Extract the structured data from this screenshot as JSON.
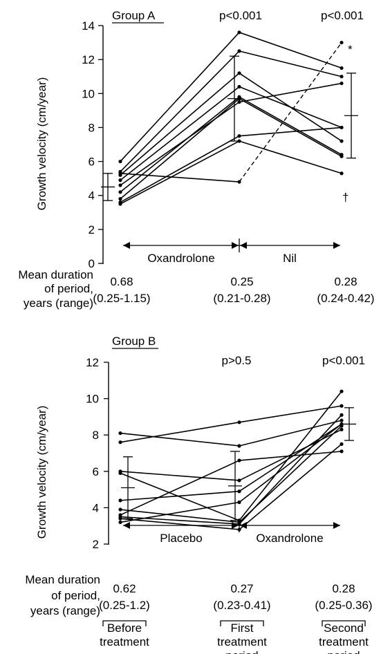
{
  "chart_data": [
    {
      "type": "line",
      "title": "Group A",
      "ylabel": "Growth velocity (cm/year)",
      "ylim": [
        0,
        14
      ],
      "yticks": [
        "0",
        "2",
        "4",
        "6",
        "8",
        "10",
        "12",
        "14"
      ],
      "period_labels": [
        "Oxandrolone",
        "Nil"
      ],
      "p_values": [
        "p<0.001",
        "p<0.001"
      ],
      "duration_label": [
        "Mean duration",
        "of period,",
        "years (range)"
      ],
      "durations": [
        {
          "mean": "0.68",
          "range": "(0.25-1.15)"
        },
        {
          "mean": "0.25",
          "range": "(0.21-0.28)"
        },
        {
          "mean": "0.28",
          "range": "(0.24-0.42)"
        }
      ],
      "series": [
        {
          "values": [
            6.0,
            13.6,
            11.5
          ]
        },
        {
          "values": [
            5.4,
            12.5,
            11.0
          ]
        },
        {
          "values": [
            5.2,
            11.2,
            7.2
          ]
        },
        {
          "values": [
            4.9,
            10.4,
            8.0
          ]
        },
        {
          "values": [
            4.6,
            9.5,
            10.6
          ]
        },
        {
          "values": [
            4.2,
            9.8,
            6.4
          ]
        },
        {
          "values": [
            3.8,
            9.7,
            6.3
          ]
        },
        {
          "values": [
            3.6,
            7.5,
            8.0
          ]
        },
        {
          "values": [
            3.5,
            7.2,
            5.3
          ]
        },
        {
          "values": [
            5.3,
            4.8,
            13.0
          ],
          "style": "dashed"
        }
      ],
      "mean_sd": [
        {
          "mean": 4.5,
          "low": 3.7,
          "high": 5.3
        },
        {
          "mean": 9.7,
          "low": 7.2,
          "high": 12.2
        },
        {
          "mean": 8.7,
          "low": 6.2,
          "high": 11.2
        }
      ],
      "annotations": [
        "*",
        "†"
      ]
    },
    {
      "type": "line",
      "title": "Group B",
      "ylabel": "Growth velocity (cm/year)",
      "ylim": [
        2,
        12
      ],
      "yticks": [
        "2",
        "4",
        "6",
        "8",
        "10",
        "12"
      ],
      "period_labels": [
        "Placebo",
        "Oxandrolone"
      ],
      "p_values": [
        "p>0.5",
        "p<0.001"
      ],
      "duration_label": [
        "Mean duration",
        "of period,",
        "years (range)"
      ],
      "durations": [
        {
          "mean": "0.62",
          "range": "(0.25-1.2)"
        },
        {
          "mean": "0.27",
          "range": "(0.23-0.41)"
        },
        {
          "mean": "0.28",
          "range": "(0.25-0.36)"
        }
      ],
      "x_categories": [
        [
          "Before",
          "treatment"
        ],
        [
          "First",
          "treatment",
          "period"
        ],
        [
          "Second",
          "treatment",
          "period"
        ]
      ],
      "series": [
        {
          "values": [
            8.1,
            7.4,
            8.8
          ]
        },
        {
          "values": [
            7.6,
            8.7,
            9.6
          ]
        },
        {
          "values": [
            6.0,
            5.5,
            8.3
          ]
        },
        {
          "values": [
            5.9,
            3.3,
            10.4
          ]
        },
        {
          "values": [
            4.4,
            4.9,
            8.6
          ]
        },
        {
          "values": [
            3.9,
            3.2,
            8.5
          ]
        },
        {
          "values": [
            3.6,
            6.6,
            7.1
          ]
        },
        {
          "values": [
            3.5,
            3.1,
            9.1
          ]
        },
        {
          "values": [
            3.2,
            4.3,
            8.6
          ]
        },
        {
          "values": [
            3.4,
            2.8,
            7.5
          ]
        }
      ],
      "mean_sd": [
        {
          "mean": 5.1,
          "low": 3.4,
          "high": 6.8
        },
        {
          "mean": 5.2,
          "low": 3.3,
          "high": 7.1
        },
        {
          "mean": 8.6,
          "low": 7.7,
          "high": 9.5
        }
      ]
    }
  ]
}
